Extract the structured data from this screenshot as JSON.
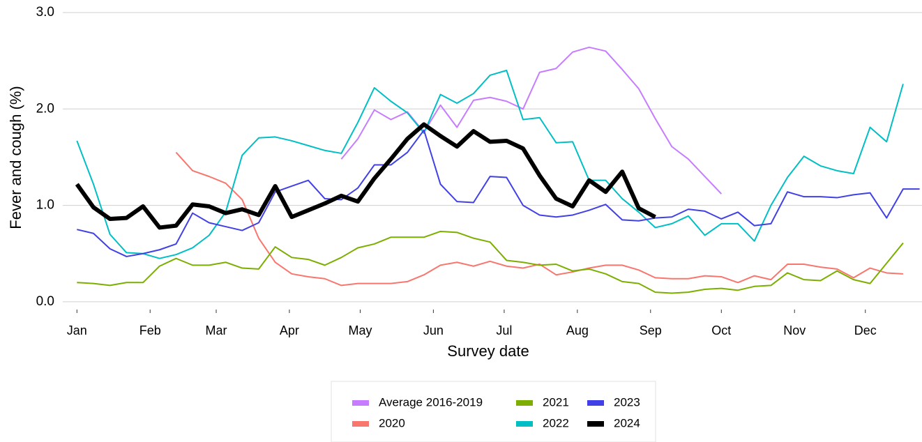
{
  "chart_data": {
    "type": "line",
    "x_label": "Survey date",
    "y_label": "Fever and cough (%)",
    "x": [
      1,
      8,
      15,
      22,
      29,
      36,
      43,
      50,
      57,
      64,
      71,
      78,
      85,
      92,
      99,
      106,
      113,
      120,
      127,
      134,
      141,
      148,
      155,
      162,
      169,
      176,
      183,
      190,
      197,
      204,
      211,
      218,
      225,
      232,
      239,
      246,
      253,
      260,
      267,
      274,
      281,
      288,
      295,
      302,
      309,
      316,
      323,
      330,
      337,
      344,
      351,
      358
    ],
    "xlim": [
      -5,
      359
    ],
    "xticks": [
      {
        "value": 1,
        "label": "Jan"
      },
      {
        "value": 32,
        "label": "Feb"
      },
      {
        "value": 60,
        "label": "Mar"
      },
      {
        "value": 91,
        "label": "Apr"
      },
      {
        "value": 121,
        "label": "May"
      },
      {
        "value": 152,
        "label": "Jun"
      },
      {
        "value": 182,
        "label": "Jul"
      },
      {
        "value": 213,
        "label": "Aug"
      },
      {
        "value": 244,
        "label": "Sep"
      },
      {
        "value": 274,
        "label": "Oct"
      },
      {
        "value": 305,
        "label": "Nov"
      },
      {
        "value": 335,
        "label": "Dec"
      }
    ],
    "ylim": [
      -0.08,
      3.0
    ],
    "yticks": [
      {
        "value": 0,
        "label": "0.0"
      },
      {
        "value": 1,
        "label": "1.0"
      },
      {
        "value": 2,
        "label": "2.0"
      },
      {
        "value": 3,
        "label": "3.0"
      }
    ],
    "grid": true,
    "legend": "bottom",
    "series": [
      {
        "name": "Average 2016-2019",
        "color": "#c77cff",
        "width": 2,
        "values": [
          null,
          null,
          null,
          null,
          null,
          null,
          null,
          null,
          null,
          null,
          null,
          null,
          null,
          null,
          null,
          null,
          1.48,
          1.69,
          1.99,
          1.89,
          1.97,
          1.76,
          2.04,
          1.81,
          2.09,
          2.12,
          2.08,
          2.0,
          2.38,
          2.42,
          2.59,
          2.64,
          2.6,
          2.41,
          2.21,
          1.9,
          1.61,
          1.48,
          1.3,
          1.12,
          null,
          null,
          null,
          null,
          null,
          null,
          null,
          null,
          null,
          null,
          null,
          null
        ]
      },
      {
        "name": "2020",
        "color": "#f8766d",
        "width": 2,
        "values": [
          null,
          null,
          null,
          null,
          null,
          null,
          1.55,
          1.36,
          1.3,
          1.23,
          1.06,
          0.66,
          0.41,
          0.29,
          0.26,
          0.24,
          0.17,
          0.19,
          0.19,
          0.19,
          0.21,
          0.28,
          0.38,
          0.41,
          0.37,
          0.42,
          0.37,
          0.35,
          0.39,
          0.28,
          0.31,
          0.35,
          0.38,
          0.38,
          0.33,
          0.25,
          0.24,
          0.24,
          0.27,
          0.26,
          0.2,
          0.27,
          0.23,
          0.39,
          0.39,
          0.36,
          0.34,
          0.25,
          0.35,
          0.3,
          0.29,
          null
        ]
      },
      {
        "name": "2021",
        "color": "#7cae00",
        "width": 2,
        "values": [
          0.2,
          0.19,
          0.17,
          0.2,
          0.2,
          0.37,
          0.45,
          0.38,
          0.38,
          0.41,
          0.35,
          0.34,
          0.57,
          0.46,
          0.44,
          0.38,
          0.46,
          0.56,
          0.6,
          0.67,
          0.67,
          0.67,
          0.73,
          0.72,
          0.66,
          0.62,
          0.43,
          0.41,
          0.38,
          0.39,
          0.32,
          0.34,
          0.29,
          0.21,
          0.19,
          0.1,
          0.09,
          0.1,
          0.13,
          0.14,
          0.12,
          0.16,
          0.17,
          0.3,
          0.23,
          0.22,
          0.32,
          0.23,
          0.19,
          0.4,
          0.61,
          null
        ]
      },
      {
        "name": "2022",
        "color": "#00bfc4",
        "width": 2,
        "values": [
          1.67,
          1.22,
          0.7,
          0.51,
          0.5,
          0.45,
          0.49,
          0.56,
          0.69,
          0.93,
          1.52,
          1.7,
          1.71,
          1.67,
          1.62,
          1.57,
          1.54,
          1.86,
          2.22,
          2.08,
          1.96,
          1.75,
          2.15,
          2.06,
          2.16,
          2.35,
          2.4,
          1.89,
          1.91,
          1.65,
          1.66,
          1.26,
          1.26,
          1.07,
          0.93,
          0.77,
          0.81,
          0.89,
          0.69,
          0.81,
          0.81,
          0.63,
          1.0,
          1.29,
          1.51,
          1.41,
          1.36,
          1.33,
          1.81,
          1.66,
          2.26,
          null
        ]
      },
      {
        "name": "2023",
        "color": "#4040e6",
        "width": 2,
        "values": [
          0.75,
          0.71,
          0.55,
          0.47,
          0.5,
          0.54,
          0.6,
          0.92,
          0.82,
          0.78,
          0.74,
          0.82,
          1.14,
          1.2,
          1.26,
          1.07,
          1.06,
          1.18,
          1.42,
          1.42,
          1.55,
          1.78,
          1.22,
          1.04,
          1.03,
          1.3,
          1.29,
          1.0,
          0.9,
          0.88,
          0.9,
          0.95,
          1.01,
          0.85,
          0.84,
          0.87,
          0.88,
          0.96,
          0.94,
          0.86,
          0.93,
          0.79,
          0.81,
          1.14,
          1.09,
          1.09,
          1.08,
          1.11,
          1.13,
          0.87,
          1.17,
          1.17
        ]
      },
      {
        "name": "2024",
        "color": "#000000",
        "width": 6,
        "values": [
          1.22,
          0.98,
          0.86,
          0.87,
          0.99,
          0.77,
          0.79,
          1.01,
          0.99,
          0.92,
          0.96,
          0.9,
          1.2,
          0.88,
          0.95,
          1.02,
          1.1,
          1.04,
          1.28,
          1.48,
          1.69,
          1.84,
          1.72,
          1.61,
          1.77,
          1.66,
          1.67,
          1.59,
          1.31,
          1.07,
          0.99,
          1.26,
          1.14,
          1.35,
          0.97,
          0.88,
          null,
          null,
          null,
          null,
          null,
          null,
          null,
          null,
          null,
          null,
          null,
          null,
          null,
          null,
          null,
          null
        ]
      }
    ]
  }
}
